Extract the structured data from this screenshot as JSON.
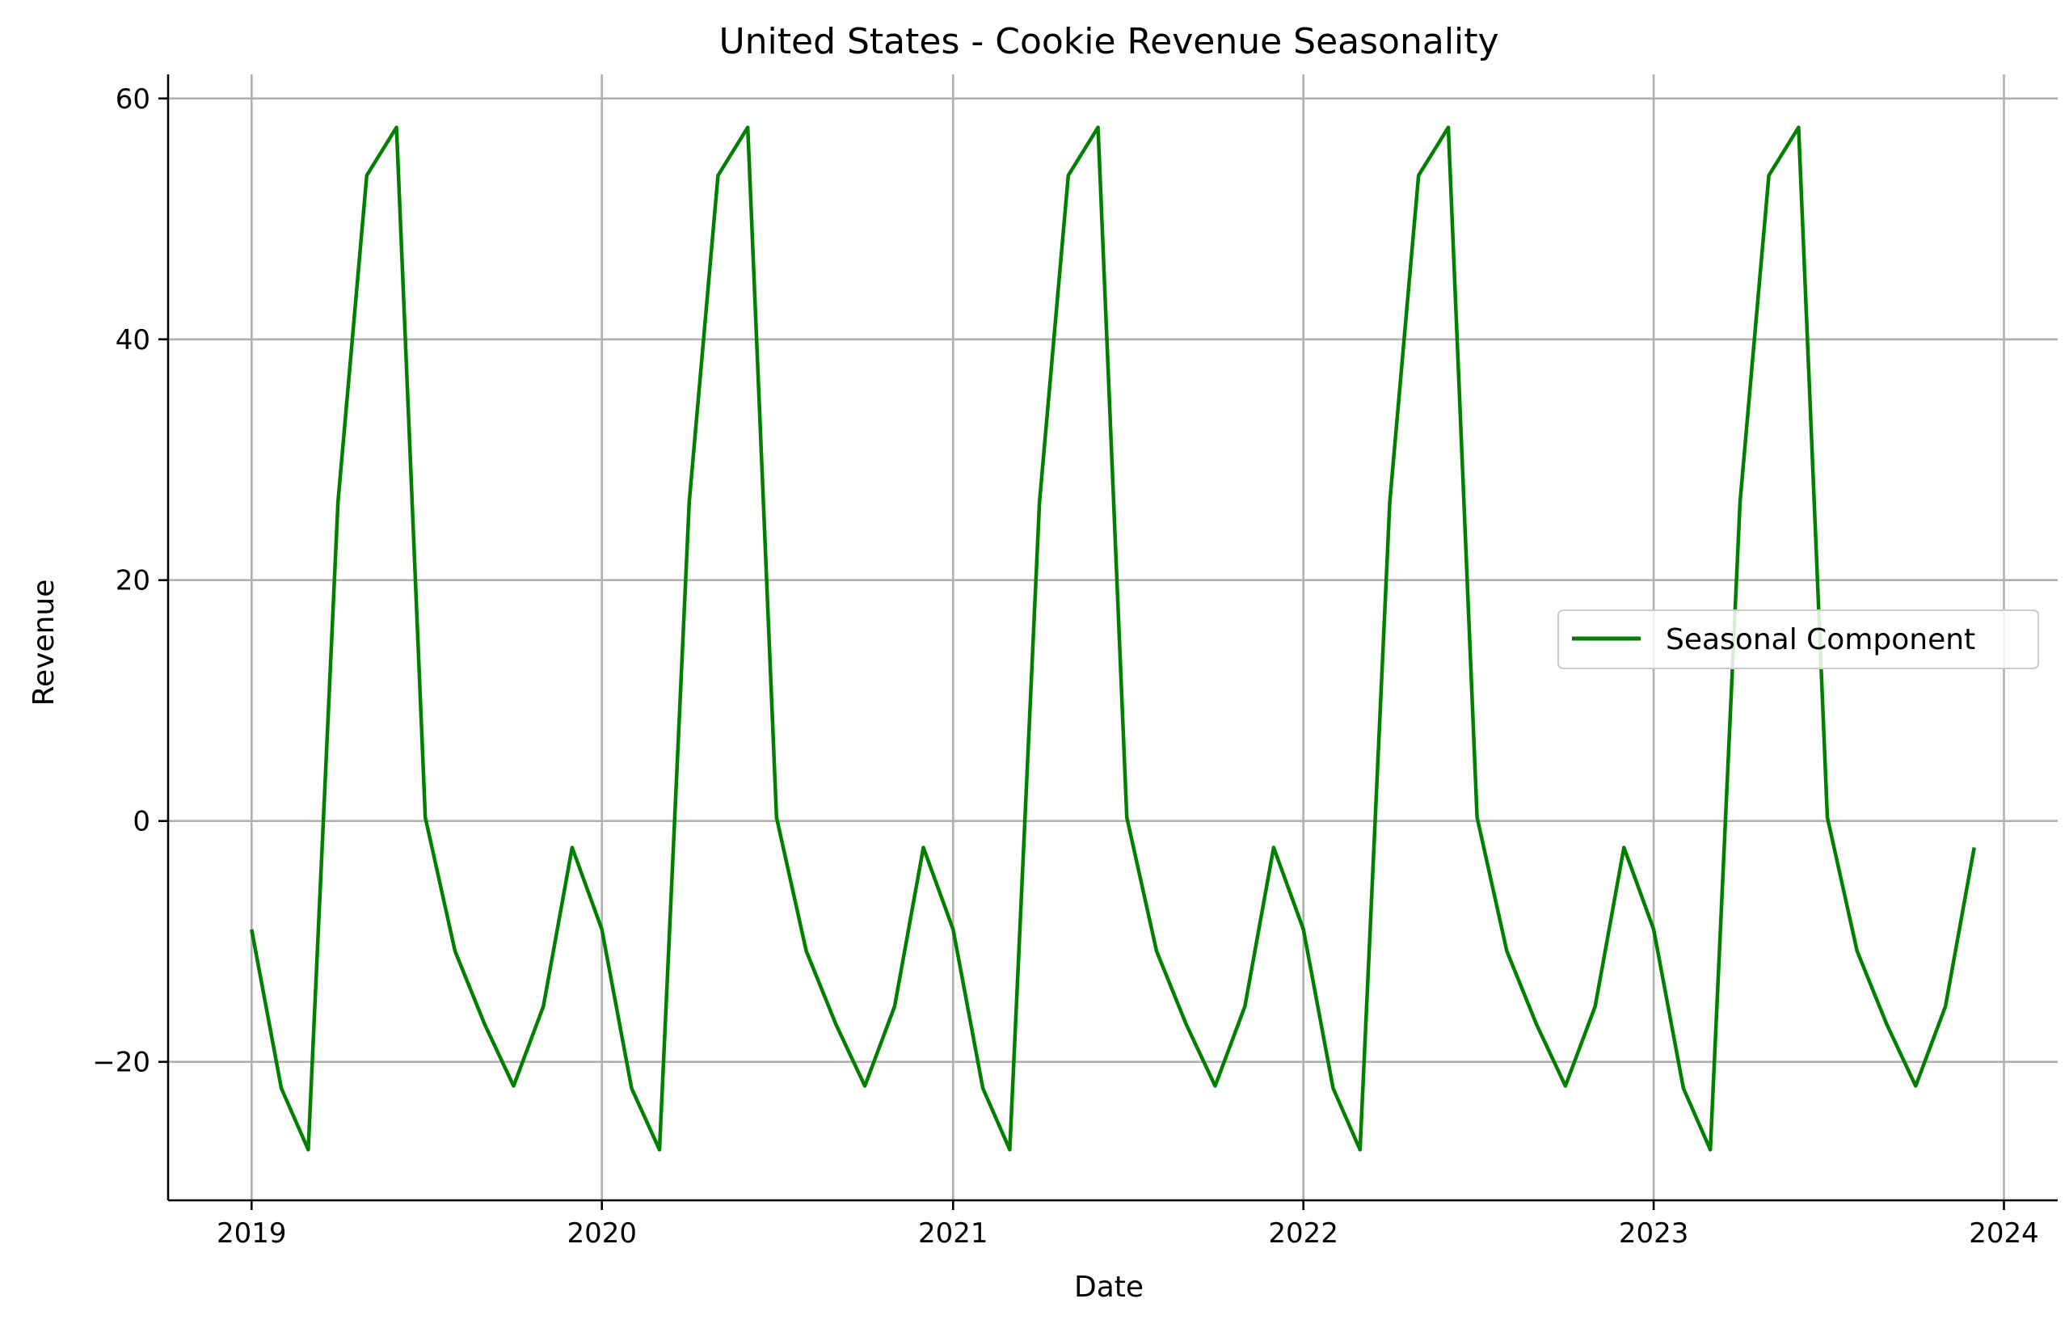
{
  "chart_data": {
    "type": "line",
    "title": "United States - Cookie Revenue Seasonality",
    "xlabel": "Date",
    "ylabel": "Revenue",
    "x_ticks": [
      "2019",
      "2020",
      "2021",
      "2022",
      "2023",
      "2024"
    ],
    "y_ticks": [
      -20,
      0,
      20,
      40,
      60
    ],
    "y_tick_labels": [
      "−20",
      "0",
      "20",
      "40",
      "60"
    ],
    "xlim": [
      "2018-10-06",
      "2024-02-26"
    ],
    "ylim": [
      -31.5,
      62
    ],
    "grid": true,
    "legend": {
      "position": "center-right"
    },
    "colors": {
      "series": "#008000",
      "grid": "#b0b0b0",
      "axes": "#000000"
    },
    "series": [
      {
        "name": "Seasonal Component",
        "x": [
          "2019-01-01",
          "2019-02-01",
          "2019-03-01",
          "2019-04-01",
          "2019-05-01",
          "2019-06-01",
          "2019-07-01",
          "2019-08-01",
          "2019-09-01",
          "2019-10-01",
          "2019-11-01",
          "2019-12-01",
          "2020-01-01",
          "2020-02-01",
          "2020-03-01",
          "2020-04-01",
          "2020-05-01",
          "2020-06-01",
          "2020-07-01",
          "2020-08-01",
          "2020-09-01",
          "2020-10-01",
          "2020-11-01",
          "2020-12-01",
          "2021-01-01",
          "2021-02-01",
          "2021-03-01",
          "2021-04-01",
          "2021-05-01",
          "2021-06-01",
          "2021-07-01",
          "2021-08-01",
          "2021-09-01",
          "2021-10-01",
          "2021-11-01",
          "2021-12-01",
          "2022-01-01",
          "2022-02-01",
          "2022-03-01",
          "2022-04-01",
          "2022-05-01",
          "2022-06-01",
          "2022-07-01",
          "2022-08-01",
          "2022-09-01",
          "2022-10-01",
          "2022-11-01",
          "2022-12-01",
          "2023-01-01",
          "2023-02-01",
          "2023-03-01",
          "2023-04-01",
          "2023-05-01",
          "2023-06-01",
          "2023-07-01",
          "2023-08-01",
          "2023-09-01",
          "2023-10-01",
          "2023-11-01",
          "2023-12-01"
        ],
        "values": [
          -9,
          -22.2,
          -27.3,
          26.5,
          53.6,
          57.6,
          0.3,
          -10.8,
          -16.9,
          -22,
          -15.4,
          -2.2,
          -9,
          -22.2,
          -27.3,
          26.5,
          53.6,
          57.6,
          0.3,
          -10.8,
          -16.9,
          -22,
          -15.4,
          -2.2,
          -9,
          -22.2,
          -27.3,
          26.5,
          53.6,
          57.6,
          0.3,
          -10.8,
          -16.9,
          -22,
          -15.4,
          -2.2,
          -9,
          -22.2,
          -27.3,
          26.5,
          53.6,
          57.6,
          0.3,
          -10.8,
          -16.9,
          -22,
          -15.4,
          -2.2,
          -9,
          -22.2,
          -27.3,
          26.5,
          53.6,
          57.6,
          0.3,
          -10.8,
          -16.9,
          -22,
          -15.4,
          -2.2
        ]
      }
    ]
  }
}
